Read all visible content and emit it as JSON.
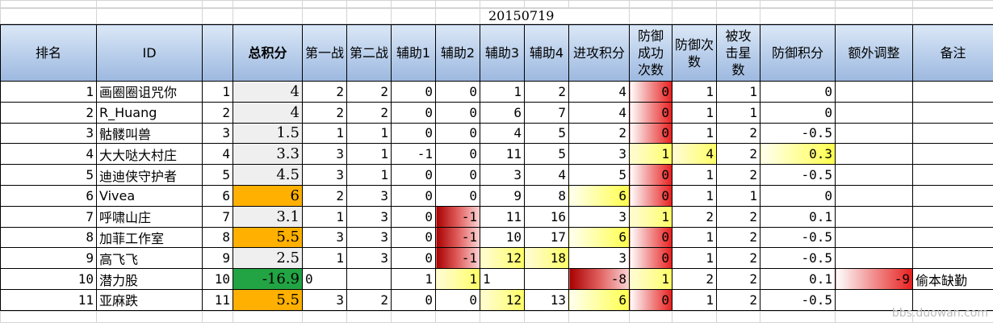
{
  "sheet": {
    "date_label": "20150719",
    "watermark": "bbs.duowan.com"
  },
  "headers": [
    "排名",
    "ID",
    "",
    "总积分",
    "第一战",
    "第二战",
    "辅助1",
    "辅助2",
    "辅助3",
    "辅助4",
    "进攻积分",
    "防御成功次数",
    "防御次数",
    "被攻击星数",
    "防御积分",
    "额外调整",
    "备注"
  ],
  "rows": [
    {
      "rank": "1",
      "id": "画圈圈诅咒你",
      "idx": "1",
      "total": "4",
      "w1": "2",
      "w2": "2",
      "a1": "0",
      "a2": "0",
      "a3": "1",
      "a4": "2",
      "atk": "4",
      "dsucc": "0",
      "dcnt": "1",
      "stars": "1",
      "dscore": "0",
      "adj": "",
      "note": ""
    },
    {
      "rank": "2",
      "id": "R_Huang",
      "idx": "2",
      "total": "4",
      "w1": "2",
      "w2": "2",
      "a1": "0",
      "a2": "0",
      "a3": "6",
      "a4": "7",
      "atk": "4",
      "dsucc": "0",
      "dcnt": "1",
      "stars": "1",
      "dscore": "0",
      "adj": "",
      "note": ""
    },
    {
      "rank": "3",
      "id": "骷髅叫兽",
      "idx": "3",
      "total": "1.5",
      "w1": "1",
      "w2": "1",
      "a1": "0",
      "a2": "0",
      "a3": "4",
      "a4": "5",
      "atk": "2",
      "dsucc": "0",
      "dcnt": "1",
      "stars": "2",
      "dscore": "-0.5",
      "adj": "",
      "note": ""
    },
    {
      "rank": "4",
      "id": "大大哒大村庄",
      "idx": "4",
      "total": "3.3",
      "w1": "3",
      "w2": "1",
      "a1": "-1",
      "a2": "0",
      "a3": "11",
      "a4": "5",
      "atk": "3",
      "dsucc": "1",
      "dcnt": "4",
      "stars": "2",
      "dscore": "0.3",
      "adj": "",
      "note": ""
    },
    {
      "rank": "5",
      "id": "迪迪侠守护者",
      "idx": "5",
      "total": "4.5",
      "w1": "3",
      "w2": "1",
      "a1": "0",
      "a2": "0",
      "a3": "3",
      "a4": "4",
      "atk": "5",
      "dsucc": "0",
      "dcnt": "1",
      "stars": "2",
      "dscore": "-0.5",
      "adj": "",
      "note": ""
    },
    {
      "rank": "6",
      "id": "Vivea",
      "idx": "6",
      "total": "6",
      "w1": "2",
      "w2": "3",
      "a1": "0",
      "a2": "0",
      "a3": "9",
      "a4": "8",
      "atk": "6",
      "dsucc": "0",
      "dcnt": "1",
      "stars": "1",
      "dscore": "0",
      "adj": "",
      "note": ""
    },
    {
      "rank": "7",
      "id": "呼啸山庄",
      "idx": "7",
      "total": "3.1",
      "w1": "1",
      "w2": "3",
      "a1": "0",
      "a2": "-1",
      "a3": "11",
      "a4": "16",
      "atk": "3",
      "dsucc": "1",
      "dcnt": "2",
      "stars": "2",
      "dscore": "0.1",
      "adj": "",
      "note": ""
    },
    {
      "rank": "8",
      "id": "加菲工作室",
      "idx": "8",
      "total": "5.5",
      "w1": "3",
      "w2": "3",
      "a1": "0",
      "a2": "-1",
      "a3": "10",
      "a4": "17",
      "atk": "6",
      "dsucc": "0",
      "dcnt": "1",
      "stars": "2",
      "dscore": "-0.5",
      "adj": "",
      "note": ""
    },
    {
      "rank": "9",
      "id": "高飞飞",
      "idx": "9",
      "total": "2.5",
      "w1": "1",
      "w2": "3",
      "a1": "0",
      "a2": "-1",
      "a3": "12",
      "a4": "18",
      "atk": "3",
      "dsucc": "0",
      "dcnt": "1",
      "stars": "2",
      "dscore": "-0.5",
      "adj": "",
      "note": ""
    },
    {
      "rank": "10",
      "id": "潜力股",
      "idx": "10",
      "total": "-16.9",
      "w1": "0",
      "w2": "",
      "a1": "1",
      "a2": "1",
      "a3": "1",
      "a4": "",
      "atk": "-8",
      "dsucc": "1",
      "dcnt": "2",
      "stars": "2",
      "dscore": "0.1",
      "adj": "-9",
      "note": "偷本缺勤"
    },
    {
      "rank": "11",
      "id": "亚麻跌",
      "idx": "11",
      "total": "5.5",
      "w1": "3",
      "w2": "2",
      "a1": "0",
      "a2": "0",
      "a3": "12",
      "a4": "13",
      "atk": "6",
      "dsucc": "0",
      "dcnt": "1",
      "stars": "2",
      "dscore": "-0.5",
      "adj": "",
      "note": ""
    }
  ],
  "cell_colors": {
    "total_orange_rows": [
      6,
      8,
      11
    ],
    "total_green_rows": [
      10
    ],
    "red_fill": "#e8201f",
    "yellow_fill": "#ffff66",
    "orange_fill": "#ffb000",
    "green_fill": "#23a444",
    "header_fill": "#b7cdea"
  }
}
